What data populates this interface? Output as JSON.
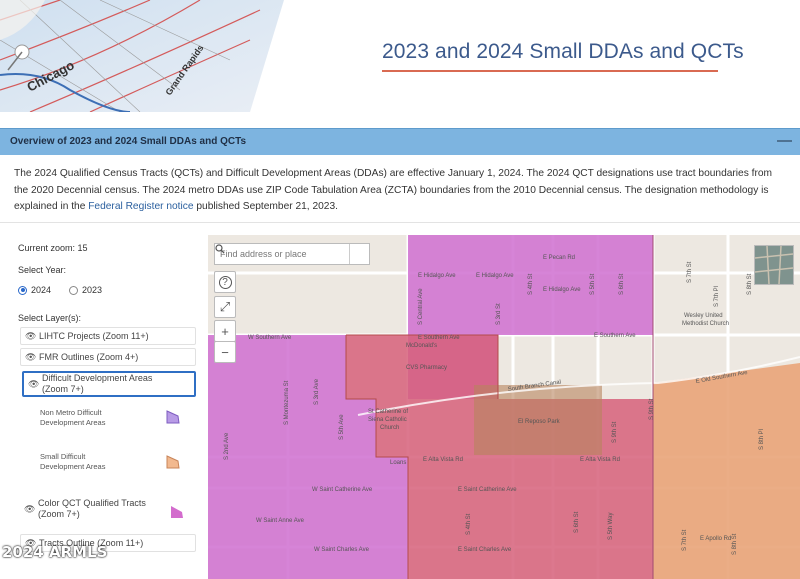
{
  "header": {
    "title": "2023 and 2024 Small DDAs and QCTs",
    "hero_map_labels": [
      "Chicago",
      "Grand Rapids"
    ]
  },
  "overview": {
    "title": "Overview of 2023 and 2024 Small DDAs and QCTs",
    "collapse_symbol": "—",
    "body_part1": "The 2024 Qualified Census Tracts (QCTs) and Difficult Development Areas (DDAs) are effective January 1, 2024. The 2024 QCT designations use tract boundaries from the 2020 Decennial census. The 2024 metro DDAs use ZIP Code Tabulation Area (ZCTA) boundaries from the 2010 Decennial census. The designation methodology is explained in the ",
    "link_text": "Federal Register notice",
    "body_part2": " published September 21, 2023."
  },
  "panel": {
    "zoom_label": "Current zoom:",
    "zoom_value": "15",
    "year_label": "Select Year:",
    "years": [
      {
        "label": "2024",
        "selected": true
      },
      {
        "label": "2023",
        "selected": false
      }
    ],
    "layers_label": "Select Layer(s):",
    "layers": {
      "lihtc": "LIHTC Projects (Zoom 11+)",
      "fmr": "FMR Outlines (Zoom 4+)",
      "dda": "Difficult Development Areas (Zoom 7+)",
      "dda_nonmetro": "Non Metro Difficult Development Areas",
      "dda_small": "Small Difficult Development Areas",
      "qct_color": "Color QCT Qualified Tracts (Zoom 7+)",
      "tracts": "Tracts Outline (Zoom 11+)"
    },
    "colors": {
      "nonmetro_swatch": "#b89be6",
      "small_swatch": "#f2b98f",
      "qct_swatch": "#d36ccd"
    }
  },
  "map": {
    "search_placeholder": "Find address or place",
    "buttons": {
      "help": "?",
      "fullscreen": "⤢",
      "zoom_in": "+",
      "zoom_out": "−"
    },
    "streets": {
      "e_hidalgo_1": "E Hidalgo Ave",
      "e_hidalgo_2": "E Hidalgo Ave",
      "e_hidalgo_3": "E Hidalgo Ave",
      "e_pecan": "E Pecan Rd",
      "w_southern": "W Southern Ave",
      "e_southern_1": "E Southern Ave",
      "e_southern_2": "E Southern Ave",
      "e_old_southern": "E Old Southern Ave",
      "e_alta_vista_1": "E Alta Vista Rd",
      "e_alta_vista_2": "E Alta Vista Rd",
      "w_st_catherine": "W Saint Catherine Ave",
      "e_st_catherine": "E Saint Catherine Ave",
      "w_st_anne": "W Saint Anne Ave",
      "w_st_charles": "W Saint Charles Ave",
      "e_st_charles": "E Saint Charles Ave",
      "e_apollo": "E Apollo Rd",
      "s_central": "S Central Ave",
      "s_montezuma": "S Montezuma St",
      "s_2nd": "S 2nd Ave",
      "s_3rd": "S 3rd Ave",
      "s_5th": "S 5th Ave",
      "s_3rd_st": "S 3rd St",
      "s_4th": "S 4th St",
      "s_5th_st": "S 5th St",
      "s_6th": "S 6th St",
      "s_7th": "S 7th St",
      "s_7th_pl": "S 7th Pl",
      "s_8th": "S 8th St",
      "s_8th_pl": "S 8th Pl",
      "s_9th": "S 9th St",
      "s_5th_way": "S 5th Way",
      "s_4th_st_b": "S 4th St",
      "s_6th_st_b": "S 6th St",
      "s_8th_st_b": "S 8th St",
      "s_7th_st_b": "S 7th St",
      "s_9th_st_b": "S 9th St"
    },
    "places": {
      "mcdonalds": "McDonald's",
      "cvs": "CVS Pharmacy",
      "church_1": "St Catherine of",
      "church_2": "Siena Catholic",
      "church_3": "Church",
      "el_reposo": "El Reposo Park",
      "wesley_1": "Wesley United",
      "wesley_2": "Methodist Church",
      "loans": "Loans",
      "south_branch": "South Branch Canal"
    },
    "colors": {
      "qct": "#cf6fd0",
      "small_dda": "#e9a479",
      "overlap": "#d06a8a"
    }
  },
  "watermark": "2024 ARMLS"
}
